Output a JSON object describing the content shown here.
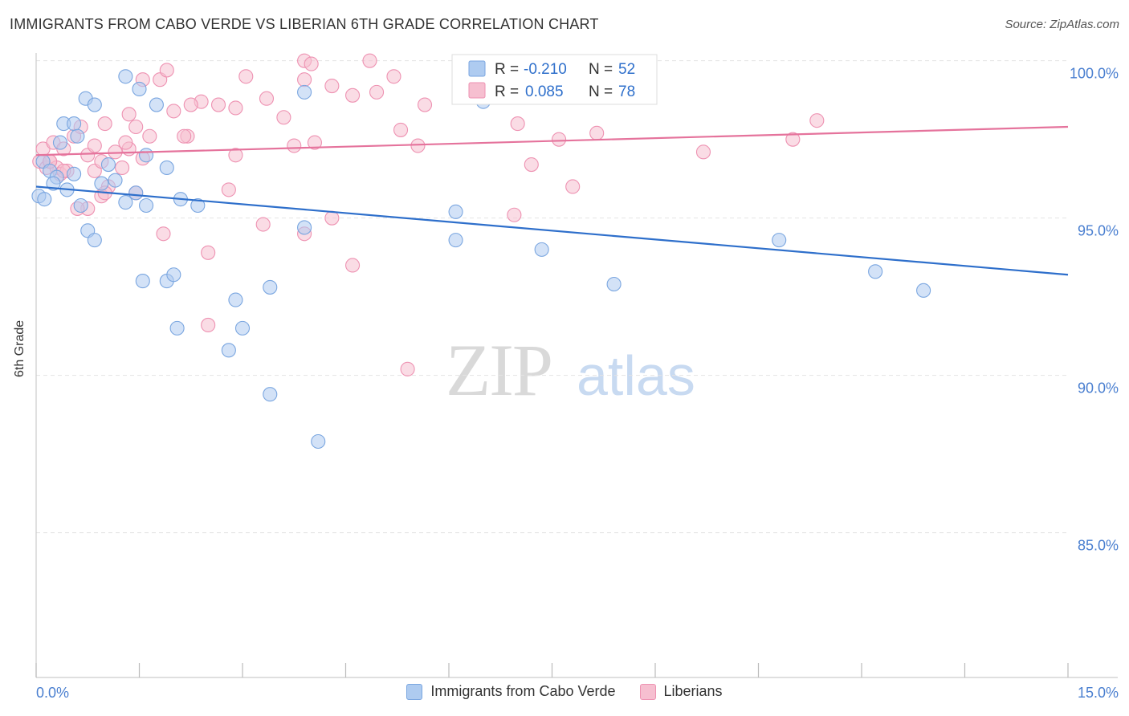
{
  "title": "IMMIGRANTS FROM CABO VERDE VS LIBERIAN 6TH GRADE CORRELATION CHART",
  "source": "Source: ZipAtlas.com",
  "watermark": {
    "zip": "ZIP",
    "atlas": "atlas"
  },
  "legend_top": [
    {
      "r_label": "R =",
      "r_value": "-0.210",
      "n_label": "N =",
      "n_value": "52"
    },
    {
      "r_label": "R =",
      "r_value": "0.085",
      "n_label": "N =",
      "n_value": "78"
    }
  ],
  "legend_bottom": [
    {
      "label": "Immigrants from Cabo Verde"
    },
    {
      "label": "Liberians"
    }
  ],
  "colors": {
    "blue_fill": "#aecbf0",
    "blue_stroke": "#7aa6e0",
    "blue_line": "#2e6fcb",
    "pink_fill": "#f6bfd0",
    "pink_stroke": "#ee92b2",
    "pink_line": "#e5739c",
    "tick_text": "#4a7fd0",
    "grid": "#e4e4e4"
  },
  "chart_data": {
    "type": "scatter",
    "title": "IMMIGRANTS FROM CABO VERDE VS LIBERIAN 6TH GRADE CORRELATION CHART",
    "xlabel": "",
    "ylabel": "6th Grade",
    "xlim": [
      0,
      15
    ],
    "ylim": [
      80.4,
      100.4
    ],
    "x_tick_labels": [
      "0.0%",
      "15.0%"
    ],
    "y_ticks": [
      85,
      90,
      95,
      100
    ],
    "y_tick_labels": [
      "85.0%",
      "90.0%",
      "95.0%",
      "100.0%"
    ],
    "grid": true,
    "legend_position": "top-center",
    "series": [
      {
        "name": "Immigrants from Cabo Verde",
        "color": "#7aa6e0",
        "trend": {
          "x": [
            0,
            15
          ],
          "y": [
            96.0,
            93.2
          ]
        },
        "points": [
          [
            0.04,
            95.7
          ],
          [
            0.12,
            95.6
          ],
          [
            0.1,
            96.8
          ],
          [
            0.2,
            96.5
          ],
          [
            0.3,
            96.3
          ],
          [
            0.25,
            96.1
          ],
          [
            0.45,
            95.9
          ],
          [
            0.35,
            97.4
          ],
          [
            0.55,
            96.4
          ],
          [
            0.65,
            95.4
          ],
          [
            0.75,
            94.6
          ],
          [
            0.85,
            94.3
          ],
          [
            0.95,
            96.1
          ],
          [
            1.05,
            96.7
          ],
          [
            1.15,
            96.2
          ],
          [
            1.3,
            95.5
          ],
          [
            1.45,
            95.8
          ],
          [
            1.6,
            95.4
          ],
          [
            0.4,
            98.0
          ],
          [
            0.55,
            98.0
          ],
          [
            0.72,
            98.8
          ],
          [
            0.85,
            98.6
          ],
          [
            1.3,
            99.5
          ],
          [
            1.5,
            99.1
          ],
          [
            1.6,
            97.0
          ],
          [
            1.75,
            98.6
          ],
          [
            1.9,
            96.6
          ],
          [
            2.1,
            95.6
          ],
          [
            2.35,
            95.4
          ],
          [
            1.55,
            93.0
          ],
          [
            1.9,
            93.0
          ],
          [
            2.0,
            93.2
          ],
          [
            2.05,
            91.5
          ],
          [
            2.8,
            90.8
          ],
          [
            2.9,
            92.4
          ],
          [
            3.0,
            91.5
          ],
          [
            3.4,
            92.8
          ],
          [
            3.4,
            89.4
          ],
          [
            3.9,
            94.7
          ],
          [
            3.9,
            99.0
          ],
          [
            4.1,
            87.9
          ],
          [
            6.1,
            95.2
          ],
          [
            6.1,
            94.3
          ],
          [
            6.5,
            98.7
          ],
          [
            6.6,
            99.5
          ],
          [
            7.35,
            94.0
          ],
          [
            7.7,
            99.9
          ],
          [
            8.4,
            92.9
          ],
          [
            10.8,
            94.3
          ],
          [
            12.2,
            93.3
          ],
          [
            12.9,
            92.7
          ],
          [
            0.6,
            97.6
          ]
        ]
      },
      {
        "name": "Liberians",
        "color": "#ee92b2",
        "trend": {
          "x": [
            0,
            15
          ],
          "y": [
            97.0,
            97.9
          ]
        },
        "points": [
          [
            0.05,
            96.8
          ],
          [
            0.1,
            97.2
          ],
          [
            0.15,
            96.6
          ],
          [
            0.2,
            96.8
          ],
          [
            0.25,
            97.4
          ],
          [
            0.3,
            96.6
          ],
          [
            0.35,
            96.4
          ],
          [
            0.4,
            97.2
          ],
          [
            0.45,
            96.5
          ],
          [
            0.55,
            97.6
          ],
          [
            0.65,
            97.9
          ],
          [
            0.75,
            97.0
          ],
          [
            0.85,
            96.5
          ],
          [
            0.95,
            96.8
          ],
          [
            1.05,
            96.0
          ],
          [
            1.15,
            97.1
          ],
          [
            1.25,
            96.6
          ],
          [
            1.35,
            97.2
          ],
          [
            1.45,
            95.8
          ],
          [
            1.55,
            96.9
          ],
          [
            1.65,
            97.6
          ],
          [
            0.75,
            95.3
          ],
          [
            0.95,
            95.7
          ],
          [
            1.0,
            98.0
          ],
          [
            1.35,
            98.3
          ],
          [
            1.45,
            97.9
          ],
          [
            1.55,
            99.4
          ],
          [
            1.8,
            99.4
          ],
          [
            1.9,
            99.7
          ],
          [
            2.0,
            98.4
          ],
          [
            2.2,
            97.6
          ],
          [
            2.4,
            98.7
          ],
          [
            2.65,
            98.6
          ],
          [
            2.9,
            98.5
          ],
          [
            3.05,
            99.5
          ],
          [
            3.35,
            98.8
          ],
          [
            3.6,
            98.2
          ],
          [
            3.75,
            97.3
          ],
          [
            3.9,
            99.4
          ],
          [
            4.05,
            97.4
          ],
          [
            4.3,
            99.2
          ],
          [
            4.6,
            98.9
          ],
          [
            4.85,
            100.0
          ],
          [
            4.95,
            99.0
          ],
          [
            5.2,
            99.5
          ],
          [
            5.3,
            97.8
          ],
          [
            5.55,
            97.3
          ],
          [
            5.65,
            98.6
          ],
          [
            2.5,
            93.9
          ],
          [
            2.5,
            91.6
          ],
          [
            1.85,
            94.5
          ],
          [
            3.3,
            94.8
          ],
          [
            3.9,
            94.5
          ],
          [
            4.3,
            95.0
          ],
          [
            4.6,
            93.5
          ],
          [
            5.4,
            90.2
          ],
          [
            7.0,
            98.0
          ],
          [
            7.2,
            96.7
          ],
          [
            7.6,
            97.5
          ],
          [
            7.8,
            96.0
          ],
          [
            8.15,
            97.7
          ],
          [
            9.7,
            97.1
          ],
          [
            11.0,
            97.5
          ],
          [
            11.35,
            98.1
          ],
          [
            6.95,
            95.1
          ],
          [
            0.6,
            95.3
          ],
          [
            2.8,
            95.9
          ],
          [
            2.9,
            97.0
          ],
          [
            3.9,
            100.0
          ],
          [
            1.3,
            97.4
          ],
          [
            2.25,
            98.6
          ],
          [
            0.2,
            96.8
          ],
          [
            0.4,
            96.5
          ],
          [
            0.85,
            97.3
          ],
          [
            2.15,
            97.6
          ],
          [
            4.0,
            99.9
          ],
          [
            6.6,
            99.4
          ],
          [
            1.0,
            95.8
          ]
        ]
      }
    ]
  }
}
